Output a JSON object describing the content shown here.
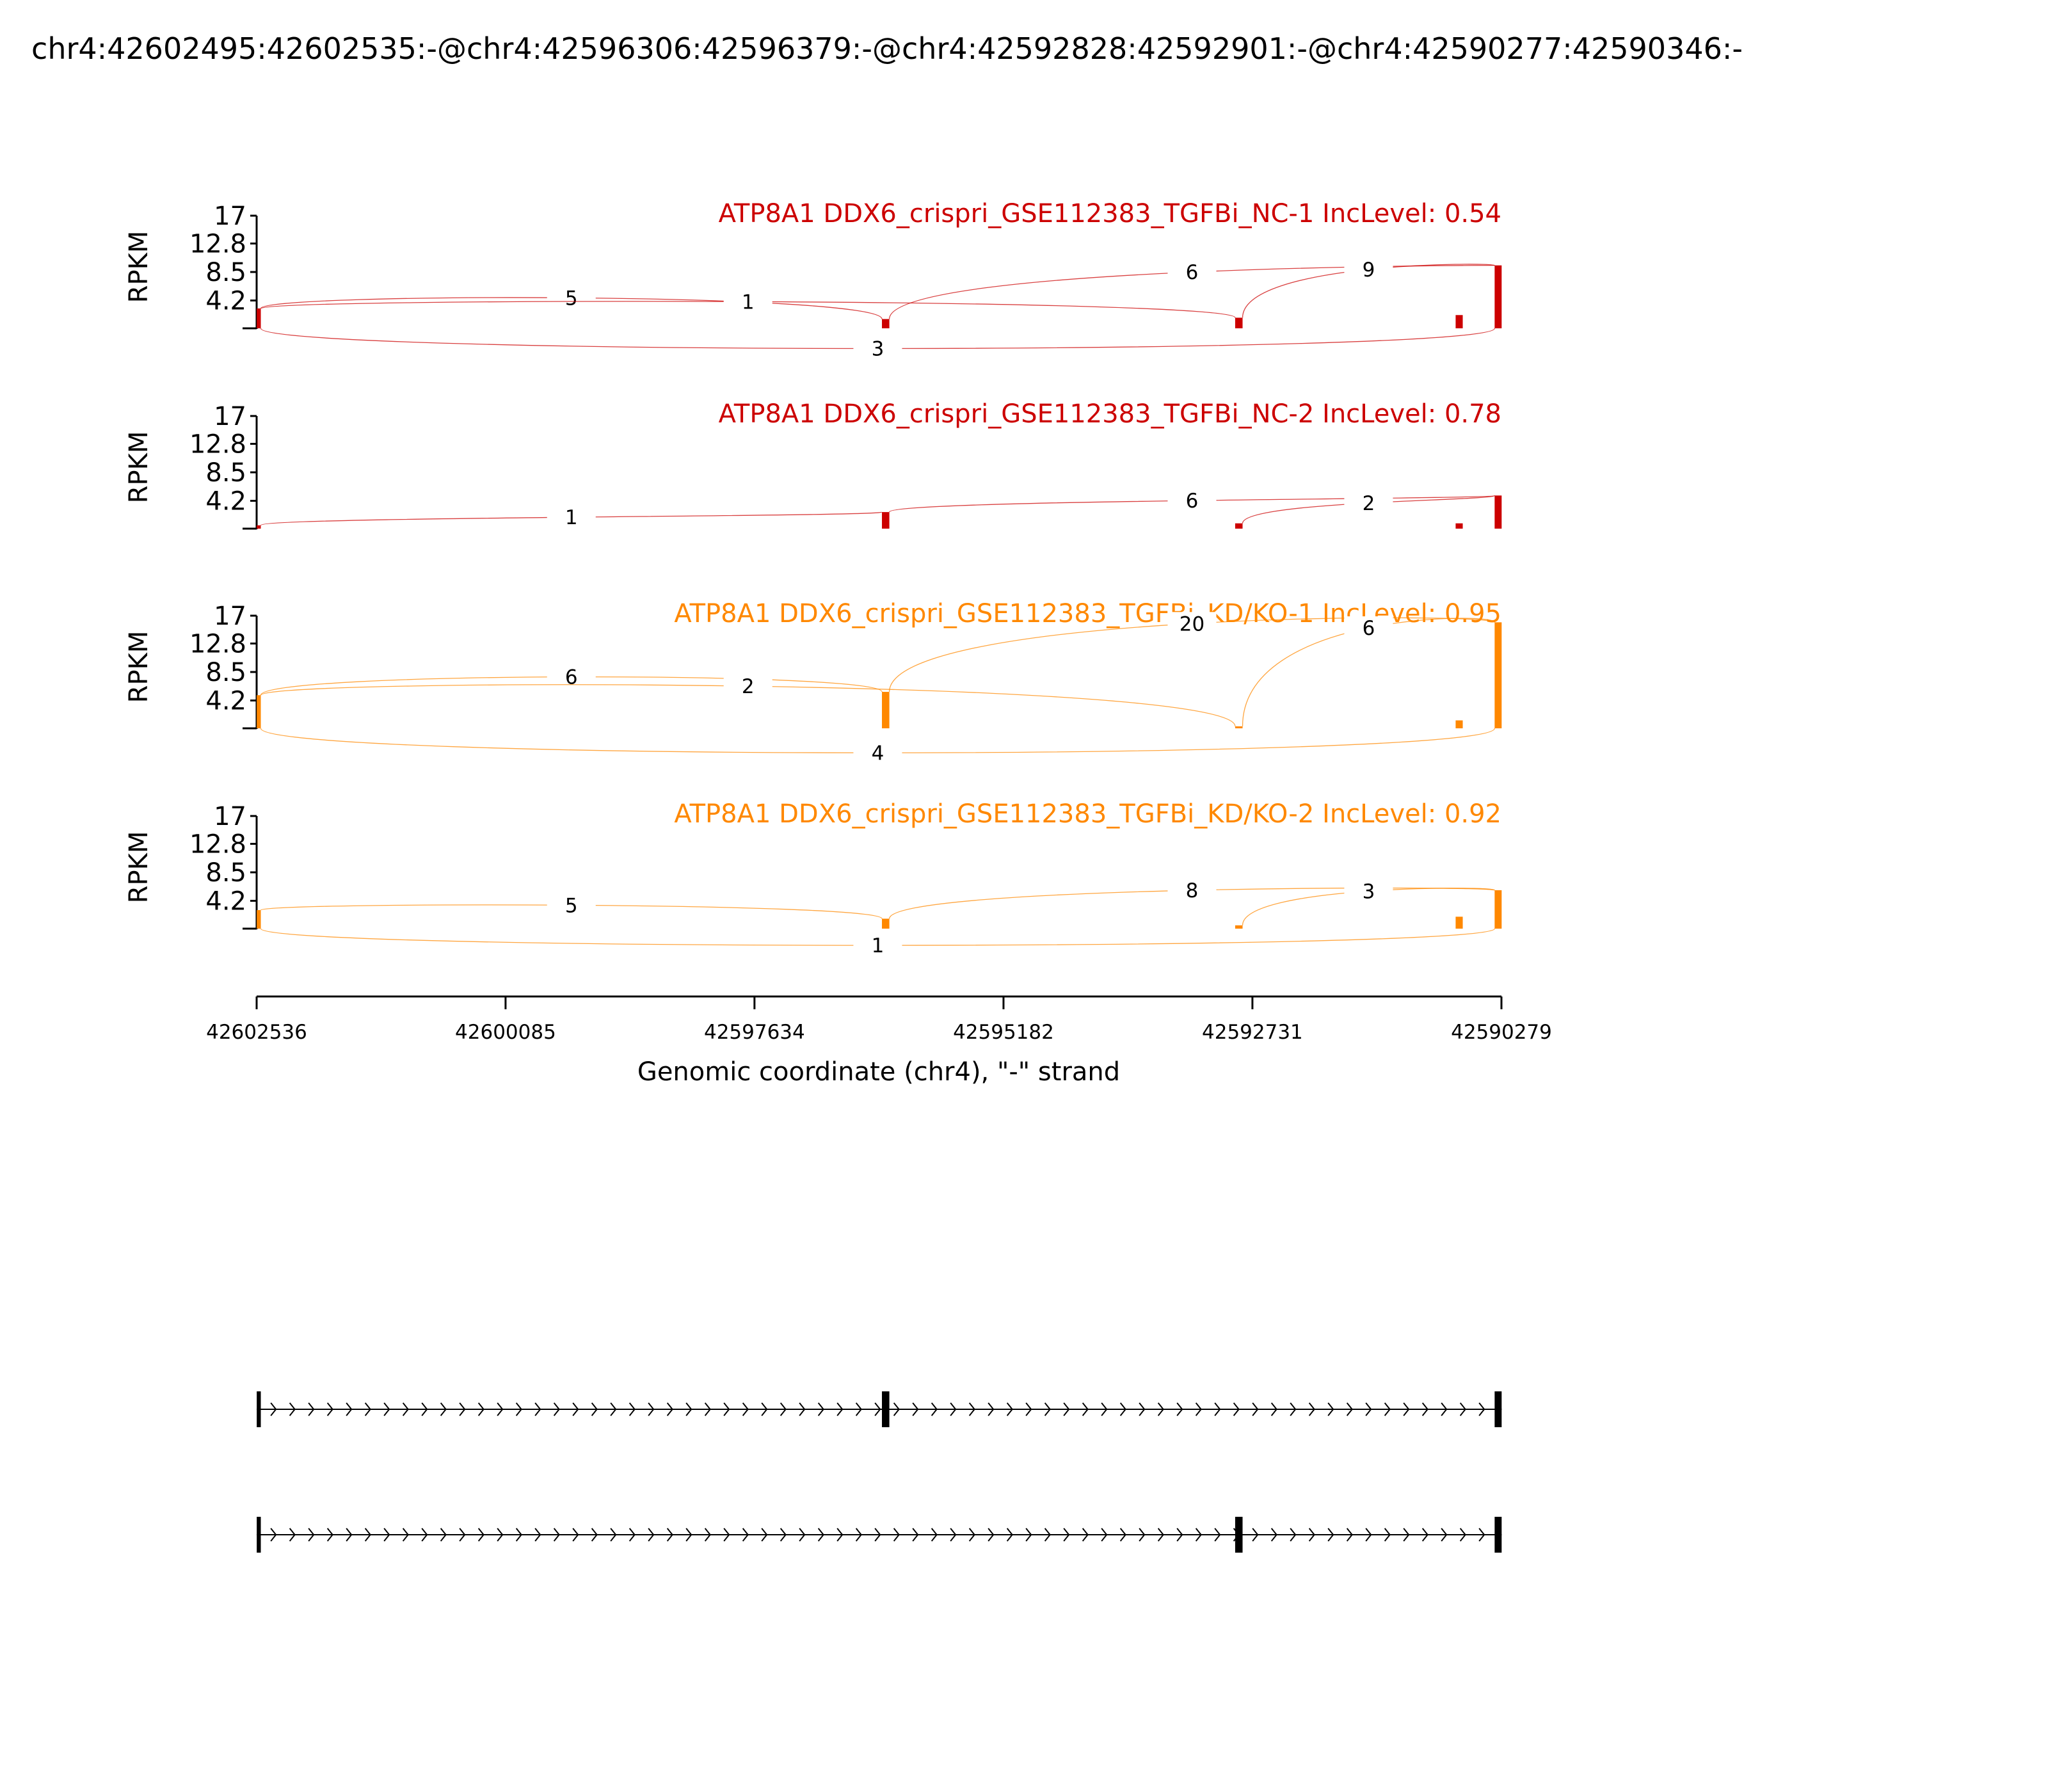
{
  "figure": {
    "title": "chr4:42602495:42602535:-@chr4:42596306:42596379:-@chr4:42592828:42592901:-@chr4:42590277:42590346:-"
  },
  "colors": {
    "nc": "#cc0000",
    "kd": "#ff8800",
    "axis": "#000000"
  },
  "chart_data": {
    "type": "sashimi",
    "ylabel": "RPKM",
    "xlabel": "Genomic coordinate (chr4), \"-\" strand",
    "xlim": [
      42602536,
      42590279
    ],
    "ylim": [
      0,
      17
    ],
    "yticks": [
      {
        "value": 4.2,
        "label": "4.2"
      },
      {
        "value": 8.5,
        "label": "8.5"
      },
      {
        "value": 12.8,
        "label": "12.8"
      },
      {
        "value": 17,
        "label": "17"
      }
    ],
    "xticks": [
      {
        "value": 42602536,
        "label": "42602536"
      },
      {
        "value": 42600085,
        "label": "42600085"
      },
      {
        "value": 42597634,
        "label": "42597634"
      },
      {
        "value": 42595182,
        "label": "42595182"
      },
      {
        "value": 42592731,
        "label": "42592731"
      },
      {
        "value": 42590279,
        "label": "42590279"
      }
    ],
    "exons": [
      {
        "start": 42602535,
        "end": 42602495
      },
      {
        "start": 42596379,
        "end": 42596306
      },
      {
        "start": 42592901,
        "end": 42592828
      },
      {
        "start": 42590346,
        "end": 42590277
      }
    ],
    "samples": [
      {
        "title": "ATP8A1 DDX6_crispri_GSE112383_TGFBi_NC-1 IncLevel: 0.54",
        "color": "#cc0000",
        "coverage": [
          {
            "start": 42602535,
            "end": 42602495,
            "value": 3.0
          },
          {
            "start": 42596379,
            "end": 42596306,
            "value": 1.4
          },
          {
            "start": 42592901,
            "end": 42592828,
            "value": 1.6
          },
          {
            "start": 42590730,
            "end": 42590660,
            "value": 2.0
          },
          {
            "start": 42590346,
            "end": 42590277,
            "value": 9.5
          }
        ],
        "junctions": [
          {
            "from": 42602495,
            "to": 42596379,
            "count": "5",
            "peak": 5.4,
            "side": "top"
          },
          {
            "from": 42602495,
            "to": 42592901,
            "count": "1",
            "peak": 4.6,
            "side": "top"
          },
          {
            "from": 42596306,
            "to": 42590346,
            "count": "6",
            "peak": 9.5,
            "side": "top"
          },
          {
            "from": 42592828,
            "to": 42590346,
            "count": "9",
            "peak": 10.0,
            "side": "top"
          },
          {
            "from": 42602495,
            "to": 42590346,
            "count": "3",
            "peak": 3.0,
            "side": "bottom"
          }
        ]
      },
      {
        "title": "ATP8A1 DDX6_crispri_GSE112383_TGFBi_NC-2 IncLevel: 0.78",
        "color": "#cc0000",
        "coverage": [
          {
            "start": 42602535,
            "end": 42602495,
            "value": 0.5
          },
          {
            "start": 42596379,
            "end": 42596306,
            "value": 2.5
          },
          {
            "start": 42592901,
            "end": 42592828,
            "value": 0.8
          },
          {
            "start": 42590730,
            "end": 42590660,
            "value": 0.8
          },
          {
            "start": 42590346,
            "end": 42590277,
            "value": 5.0
          }
        ],
        "junctions": [
          {
            "from": 42602495,
            "to": 42596379,
            "count": "1",
            "peak": 1.8,
            "side": "top"
          },
          {
            "from": 42596306,
            "to": 42590346,
            "count": "6",
            "peak": 4.4,
            "side": "top"
          },
          {
            "from": 42592828,
            "to": 42590346,
            "count": "2",
            "peak": 4.2,
            "side": "top"
          }
        ]
      },
      {
        "title": "ATP8A1 DDX6_crispri_GSE112383_TGFBi_KD/KO-1 IncLevel: 0.95",
        "color": "#ff8800",
        "coverage": [
          {
            "start": 42602535,
            "end": 42602495,
            "value": 5.0
          },
          {
            "start": 42596379,
            "end": 42596306,
            "value": 5.5
          },
          {
            "start": 42592901,
            "end": 42592828,
            "value": 0.3
          },
          {
            "start": 42590730,
            "end": 42590660,
            "value": 1.2
          },
          {
            "start": 42590346,
            "end": 42590277,
            "value": 16.0
          }
        ],
        "junctions": [
          {
            "from": 42602495,
            "to": 42596379,
            "count": "6",
            "peak": 8.6,
            "side": "top"
          },
          {
            "from": 42602495,
            "to": 42592901,
            "count": "2",
            "peak": 7.6,
            "side": "top"
          },
          {
            "from": 42596306,
            "to": 42590346,
            "count": "20",
            "peak": 17.5,
            "side": "top"
          },
          {
            "from": 42592828,
            "to": 42590346,
            "count": "6",
            "peak": 17.5,
            "side": "top"
          },
          {
            "from": 42602495,
            "to": 42590346,
            "count": "4",
            "peak": 4.5,
            "side": "bottom"
          }
        ]
      },
      {
        "title": "ATP8A1 DDX6_crispri_GSE112383_TGFBi_KD/KO-2 IncLevel: 0.92",
        "color": "#ff8800",
        "coverage": [
          {
            "start": 42602535,
            "end": 42602495,
            "value": 2.8
          },
          {
            "start": 42596379,
            "end": 42596306,
            "value": 1.5
          },
          {
            "start": 42592901,
            "end": 42592828,
            "value": 0.5
          },
          {
            "start": 42590730,
            "end": 42590660,
            "value": 1.8
          },
          {
            "start": 42590346,
            "end": 42590277,
            "value": 5.8
          }
        ],
        "junctions": [
          {
            "from": 42602495,
            "to": 42596379,
            "count": "5",
            "peak": 4.0,
            "side": "top"
          },
          {
            "from": 42596306,
            "to": 42590346,
            "count": "8",
            "peak": 6.5,
            "side": "top"
          },
          {
            "from": 42592828,
            "to": 42590346,
            "count": "3",
            "peak": 6.5,
            "side": "top"
          },
          {
            "from": 42602495,
            "to": 42590346,
            "count": "1",
            "peak": 1.8,
            "side": "bottom"
          }
        ]
      }
    ],
    "isoforms": [
      {
        "exons": [
          [
            42602535,
            42602495
          ],
          [
            42596379,
            42596306
          ],
          [
            42590346,
            42590277
          ]
        ]
      },
      {
        "exons": [
          [
            42602535,
            42602495
          ],
          [
            42592901,
            42592828
          ],
          [
            42590346,
            42590277
          ]
        ]
      }
    ]
  }
}
